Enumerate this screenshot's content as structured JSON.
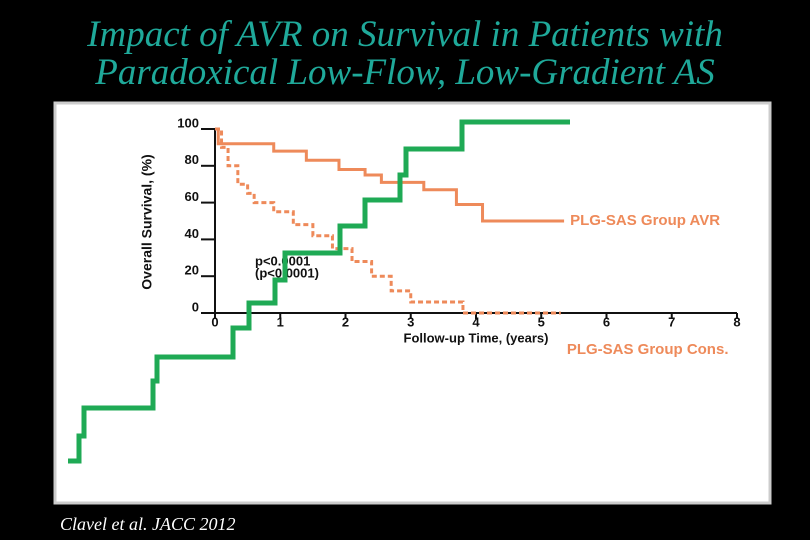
{
  "title_line1": "Impact of AVR on Survival in Patients with",
  "title_line2": "Paradoxical Low-Flow, Low-Gradient AS",
  "source": "Clavel et al.  JACC  2012",
  "chart_data": {
    "type": "line",
    "step": true,
    "x_label": "Follow-up Time, (years)",
    "y_label": "Overall Survival, (%)",
    "xlim": [
      0,
      8
    ],
    "ylim": [
      0,
      100
    ],
    "xticks": [
      0,
      1,
      2,
      3,
      4,
      5,
      6,
      7,
      8
    ],
    "yticks": [
      0,
      20,
      40,
      60,
      80,
      100
    ],
    "annotations": [
      "p<0.0001",
      "(p<0.0001)"
    ],
    "series": [
      {
        "name": "PLG-SAS Group AVR",
        "color": "#ee8a5a",
        "dashed": false,
        "x": [
          0,
          0.05,
          0.9,
          1.4,
          1.9,
          2.3,
          2.55,
          3.2,
          3.7,
          4.1,
          5.35
        ],
        "values": [
          100,
          92,
          88,
          83,
          78,
          75,
          71,
          67,
          59,
          50,
          50
        ]
      },
      {
        "name": "PLG-SAS Group Cons.",
        "color": "#ee8a5a",
        "dashed": true,
        "x": [
          0,
          0.1,
          0.2,
          0.35,
          0.5,
          0.6,
          0.9,
          1.2,
          1.5,
          1.8,
          2.1,
          2.4,
          2.7,
          3.0,
          3.8,
          5.3
        ],
        "values": [
          100,
          90,
          80,
          70,
          65,
          60,
          55,
          48,
          42,
          35,
          28,
          20,
          12,
          6,
          0,
          0
        ]
      }
    ]
  }
}
